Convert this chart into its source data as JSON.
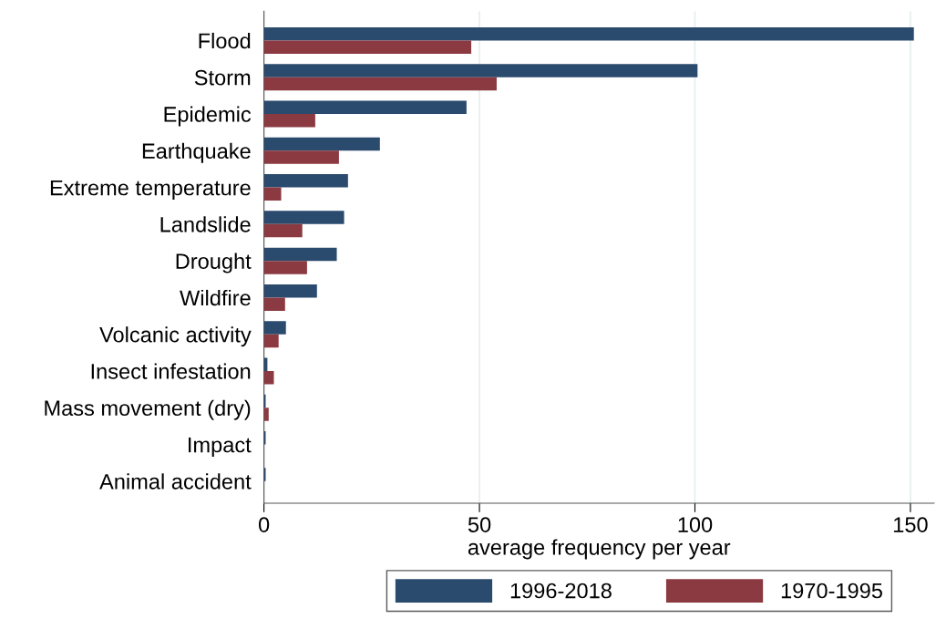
{
  "chart_data": {
    "type": "bar",
    "orientation": "horizontal",
    "xlabel": "average frequency per year",
    "categories": [
      "Flood",
      "Storm",
      "Epidemic",
      "Earthquake",
      "Extreme temperature",
      "Landslide",
      "Drought",
      "Wildfire",
      "Volcanic activity",
      "Insect infestation",
      "Mass movement (dry)",
      "Impact",
      "Animal accident"
    ],
    "series": [
      {
        "name": "1996-2018",
        "color": "#2a4a6e",
        "values": [
          150.8,
          100.6,
          47.0,
          26.9,
          19.5,
          18.6,
          16.9,
          12.3,
          5.1,
          0.8,
          0.4,
          0.4,
          0.4
        ]
      },
      {
        "name": "1970-1995",
        "color": "#8b3a42",
        "values": [
          48.1,
          54.0,
          11.9,
          17.4,
          4.0,
          8.9,
          10.0,
          4.9,
          3.4,
          2.3,
          1.1,
          0,
          0
        ]
      }
    ],
    "xlim": [
      0,
      155.5
    ],
    "xticks": [
      0,
      50,
      100,
      150
    ],
    "grid": "x",
    "legend": "bottom"
  }
}
